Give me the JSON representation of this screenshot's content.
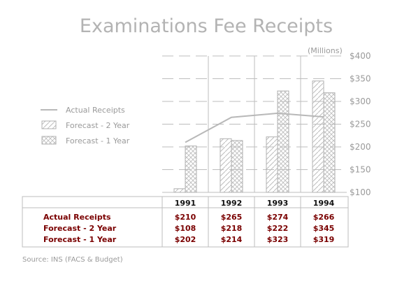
{
  "title": "Examinations Fee Receipts",
  "source": "Source: INS (FACS & Budget)",
  "colors": {
    "axis": "#bdbdbd",
    "bar_stroke": "#b0b0b0",
    "actual_line": "#b8b8b8",
    "table_text": "#7a0000",
    "header_text": "#111111"
  },
  "chart_data": {
    "type": "bar",
    "title": "Examinations Fee Receipts",
    "unit_label": "(Millions)",
    "categories": [
      "1991",
      "1992",
      "1993",
      "1994"
    ],
    "ylim": [
      100,
      400
    ],
    "yticks": [
      100,
      150,
      200,
      250,
      300,
      350,
      400
    ],
    "ytick_labels": [
      "$100",
      "$150",
      "$200",
      "$250",
      "$300",
      "$350",
      "$400"
    ],
    "grid": true,
    "legend_position": "left",
    "series": [
      {
        "name": "Actual Receipts",
        "mark": "line",
        "values": [
          210,
          265,
          274,
          266
        ],
        "labels": [
          "$210",
          "$265",
          "$274",
          "$266"
        ]
      },
      {
        "name": "Forecast - 2 Year",
        "mark": "bar",
        "pattern": "diagonal",
        "values": [
          108,
          218,
          222,
          345
        ],
        "labels": [
          "$108",
          "$218",
          "$222",
          "$345"
        ]
      },
      {
        "name": "Forecast - 1 Year",
        "mark": "bar",
        "pattern": "crosshatch",
        "values": [
          202,
          214,
          323,
          319
        ],
        "labels": [
          "$202",
          "$214",
          "$323",
          "$319"
        ]
      }
    ]
  }
}
